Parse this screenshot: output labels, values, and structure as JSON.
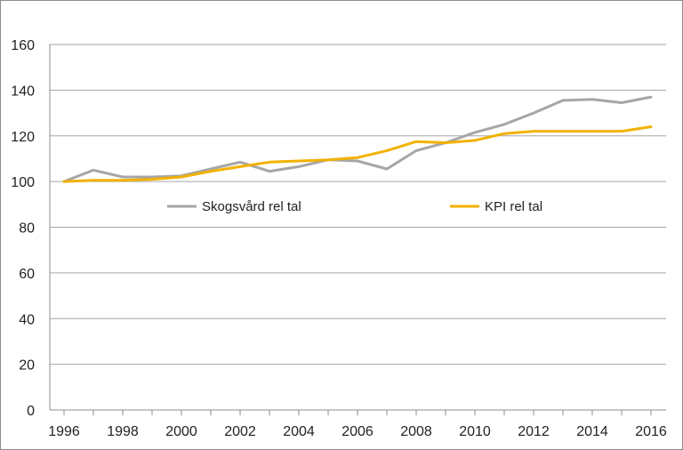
{
  "chart_data": {
    "type": "line",
    "title": "",
    "xlabel": "",
    "ylabel": "",
    "ylim": [
      0,
      160
    ],
    "yticks": [
      0,
      20,
      40,
      60,
      80,
      100,
      120,
      140,
      160
    ],
    "xlim": [
      1996,
      2016
    ],
    "xticks": [
      1996,
      1998,
      2000,
      2002,
      2004,
      2006,
      2008,
      2010,
      2012,
      2014,
      2016
    ],
    "grid": true,
    "legend_position": "inside-center",
    "series": [
      {
        "name": "Skogsvård rel tal",
        "color": "#a6a6a6",
        "x": [
          1996,
          1997,
          1998,
          1999,
          2000,
          2001,
          2002,
          2003,
          2004,
          2005,
          2006,
          2007,
          2008,
          2009,
          2010,
          2011,
          2012,
          2013,
          2014,
          2015,
          2016
        ],
        "values": [
          100,
          105,
          102,
          102,
          102.5,
          105.5,
          108.5,
          104.5,
          106.5,
          109.5,
          109,
          105.5,
          113.5,
          117,
          121.5,
          125,
          130,
          135.5,
          136,
          134.5,
          137
        ]
      },
      {
        "name": "KPI rel tal",
        "color": "#f2b200",
        "x": [
          1996,
          1997,
          1998,
          1999,
          2000,
          2001,
          2002,
          2003,
          2004,
          2005,
          2006,
          2007,
          2008,
          2009,
          2010,
          2011,
          2012,
          2013,
          2014,
          2015,
          2016
        ],
        "values": [
          100,
          100.5,
          100.5,
          101,
          102,
          104.5,
          106.5,
          108.5,
          109,
          109.5,
          110.5,
          113.5,
          117.5,
          117,
          118,
          121,
          122,
          122,
          122,
          122,
          124
        ]
      }
    ]
  }
}
